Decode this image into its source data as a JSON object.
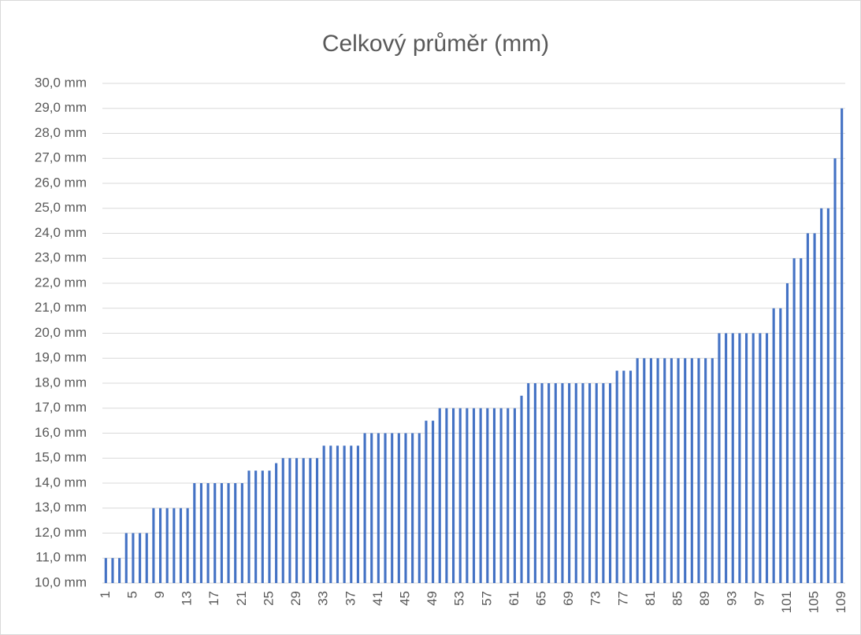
{
  "chart_data": {
    "type": "bar",
    "title": "Celkový průměr (mm)",
    "categories": [
      "1",
      null,
      null,
      null,
      "5",
      null,
      null,
      null,
      "9",
      null,
      null,
      null,
      "13",
      null,
      null,
      null,
      "17",
      null,
      null,
      null,
      "21",
      null,
      null,
      null,
      "25",
      null,
      null,
      null,
      "29",
      null,
      null,
      null,
      "33",
      null,
      null,
      null,
      "37",
      null,
      null,
      null,
      "41",
      null,
      null,
      null,
      "45",
      null,
      null,
      null,
      "49",
      null,
      null,
      null,
      "53",
      null,
      null,
      null,
      "57",
      null,
      null,
      null,
      "61",
      null,
      null,
      null,
      "65",
      null,
      null,
      null,
      "69",
      null,
      null,
      null,
      "73",
      null,
      null,
      null,
      "77",
      null,
      null,
      null,
      "81",
      null,
      null,
      null,
      "85",
      null,
      null,
      null,
      "89",
      null,
      null,
      null,
      "93",
      null,
      null,
      null,
      "97",
      null,
      null,
      null,
      "101",
      null,
      null,
      null,
      "105",
      null,
      null,
      null,
      "109"
    ],
    "values": [
      11,
      11,
      11,
      12,
      12,
      12,
      12,
      13,
      13,
      13,
      13,
      13,
      13,
      14,
      14,
      14,
      14,
      14,
      14,
      14,
      14,
      14.5,
      14.5,
      14.5,
      14.5,
      14.8,
      15,
      15,
      15,
      15,
      15,
      15,
      15.5,
      15.5,
      15.5,
      15.5,
      15.5,
      15.5,
      16,
      16,
      16,
      16,
      16,
      16,
      16,
      16,
      16,
      16.5,
      16.5,
      17,
      17,
      17,
      17,
      17,
      17,
      17,
      17,
      17,
      17,
      17,
      17,
      17.5,
      18,
      18,
      18,
      18,
      18,
      18,
      18,
      18,
      18,
      18,
      18,
      18,
      18,
      18.5,
      18.5,
      18.5,
      19,
      19,
      19,
      19,
      19,
      19,
      19,
      19,
      19,
      19,
      19,
      19,
      20,
      20,
      20,
      20,
      20,
      20,
      20,
      20,
      21,
      21,
      22,
      23,
      23,
      24,
      24,
      25,
      25,
      27,
      29
    ],
    "color": "#4472c4",
    "ylim": [
      10,
      30
    ],
    "yticks": [
      {
        "value": 10,
        "label": "10,0 mm"
      },
      {
        "value": 11,
        "label": "11,0 mm"
      },
      {
        "value": 12,
        "label": "12,0 mm"
      },
      {
        "value": 13,
        "label": "13,0 mm"
      },
      {
        "value": 14,
        "label": "14,0 mm"
      },
      {
        "value": 15,
        "label": "15,0 mm"
      },
      {
        "value": 16,
        "label": "16,0 mm"
      },
      {
        "value": 17,
        "label": "17,0 mm"
      },
      {
        "value": 18,
        "label": "18,0 mm"
      },
      {
        "value": 19,
        "label": "19,0 mm"
      },
      {
        "value": 20,
        "label": "20,0 mm"
      },
      {
        "value": 21,
        "label": "21,0 mm"
      },
      {
        "value": 22,
        "label": "22,0 mm"
      },
      {
        "value": 23,
        "label": "23,0 mm"
      },
      {
        "value": 24,
        "label": "24,0 mm"
      },
      {
        "value": 25,
        "label": "25,0 mm"
      },
      {
        "value": 26,
        "label": "26,0 mm"
      },
      {
        "value": 27,
        "label": "27,0 mm"
      },
      {
        "value": 28,
        "label": "28,0 mm"
      },
      {
        "value": 29,
        "label": "29,0 mm"
      },
      {
        "value": 30,
        "label": "30,0 mm"
      }
    ],
    "grid": true
  }
}
